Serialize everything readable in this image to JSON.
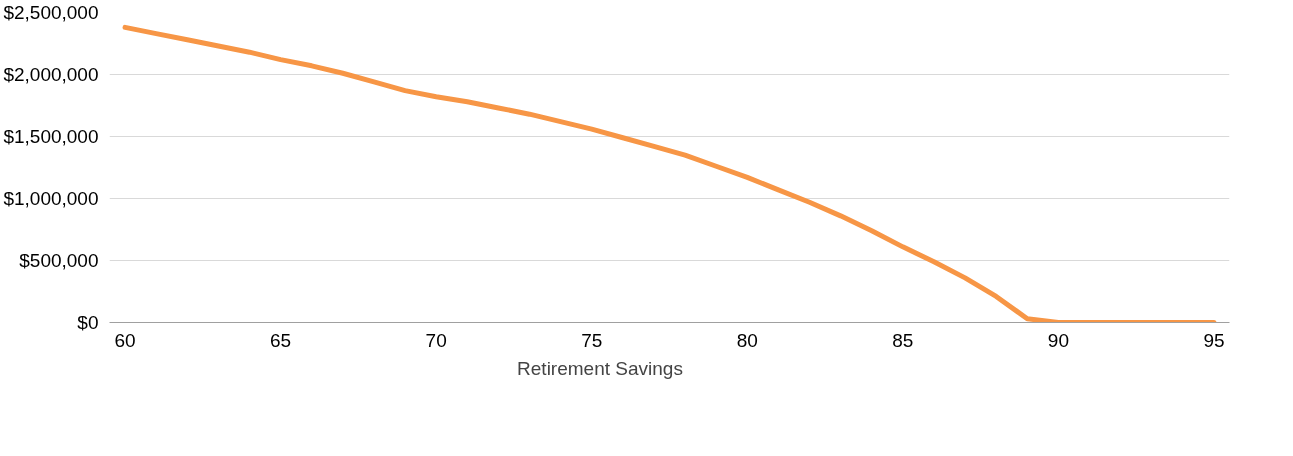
{
  "chart_data": {
    "type": "line",
    "x": [
      60,
      61,
      62,
      63,
      64,
      65,
      66,
      67,
      68,
      69,
      70,
      71,
      72,
      73,
      74,
      75,
      76,
      77,
      78,
      79,
      80,
      81,
      82,
      83,
      84,
      85,
      86,
      87,
      88,
      89,
      90,
      91,
      92,
      93,
      94,
      95
    ],
    "series": [
      {
        "name": "Retirement Savings",
        "color": "#f79646",
        "values": [
          2380000,
          2330000,
          2280000,
          2230000,
          2180000,
          2120000,
          2070000,
          2010000,
          1940000,
          1870000,
          1820000,
          1780000,
          1730000,
          1680000,
          1620000,
          1560000,
          1490000,
          1420000,
          1350000,
          1260000,
          1170000,
          1070000,
          970000,
          860000,
          740000,
          610000,
          490000,
          360000,
          210000,
          30000,
          0,
          0,
          0,
          0,
          0,
          0
        ]
      }
    ],
    "xlim": [
      59.5,
      95.5
    ],
    "xticks": [
      60,
      65,
      70,
      75,
      80,
      85,
      90,
      95
    ],
    "ylim": [
      0,
      2500000
    ],
    "yticks": [
      {
        "value": 0,
        "label": "$0"
      },
      {
        "value": 500000,
        "label": "$500,000"
      },
      {
        "value": 1000000,
        "label": "$1,000,000"
      },
      {
        "value": 1500000,
        "label": "$1,500,000"
      },
      {
        "value": 2000000,
        "label": "$2,000,000"
      },
      {
        "value": 2500000,
        "label": "$2,500,000"
      }
    ],
    "grid": "y",
    "legend": "bottom",
    "marker": "none",
    "line_style": "solid"
  }
}
